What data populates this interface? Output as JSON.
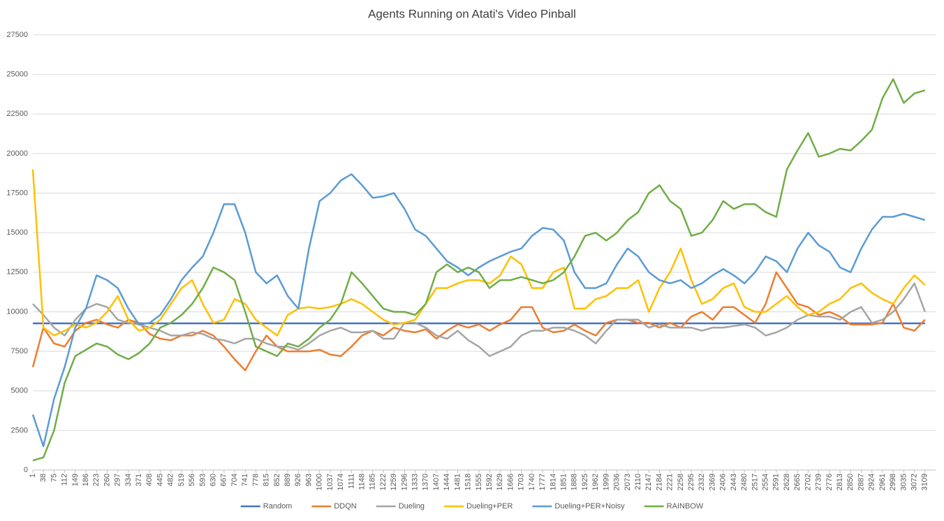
{
  "chart_data": {
    "type": "line",
    "title": "Agents Running on Atati's Video Pinball",
    "x": [
      1,
      38,
      75,
      112,
      149,
      186,
      223,
      260,
      297,
      334,
      371,
      408,
      445,
      482,
      519,
      556,
      593,
      630,
      667,
      704,
      741,
      778,
      815,
      852,
      889,
      926,
      963,
      1000,
      1037,
      1074,
      1111,
      1148,
      1185,
      1222,
      1259,
      1296,
      1333,
      1370,
      1407,
      1444,
      1481,
      1518,
      1555,
      1592,
      1629,
      1666,
      1703,
      1740,
      1777,
      1814,
      1851,
      1888,
      1925,
      1962,
      1999,
      2036,
      2073,
      2110,
      2147,
      2184,
      2221,
      2258,
      2295,
      2332,
      2369,
      2406,
      2443,
      2480,
      2517,
      2554,
      2591,
      2628,
      2665,
      2702,
      2739,
      2776,
      2813,
      2850,
      2887,
      2924,
      2961,
      2998,
      3035,
      3072,
      3109
    ],
    "xlim": [
      1,
      3146
    ],
    "ylim": [
      0,
      27500
    ],
    "yticks": [
      0,
      2500,
      5000,
      7500,
      10000,
      12500,
      15000,
      17500,
      20000,
      22500,
      25000,
      27500
    ],
    "grid": true,
    "legend": "bottom",
    "series": [
      {
        "name": "Random",
        "color": "#4472c4",
        "values": [
          9270,
          9270,
          9270,
          9270,
          9270,
          9270,
          9270,
          9270,
          9270,
          9270,
          9270,
          9270,
          9270,
          9270,
          9270,
          9270,
          9270,
          9270,
          9270,
          9270,
          9270,
          9270,
          9270,
          9270,
          9270,
          9270,
          9270,
          9270,
          9270,
          9270,
          9270,
          9270,
          9270,
          9270,
          9270,
          9270,
          9270,
          9270,
          9270,
          9270,
          9270,
          9270,
          9270,
          9270,
          9270,
          9270,
          9270,
          9270,
          9270,
          9270,
          9270,
          9270,
          9270,
          9270,
          9270,
          9270,
          9270,
          9270,
          9270,
          9270,
          9270,
          9270,
          9270,
          9270,
          9270,
          9270,
          9270,
          9270,
          9270,
          9270,
          9270,
          9270,
          9270,
          9270,
          9270,
          9270,
          9270,
          9270,
          9270,
          9270,
          9270,
          9270,
          9270,
          9270,
          9270
        ]
      },
      {
        "name": "DDQN",
        "color": "#ed7d31",
        "values": [
          6500,
          9000,
          8000,
          7800,
          8800,
          9300,
          9500,
          9200,
          9000,
          9500,
          9300,
          8600,
          8300,
          8200,
          8500,
          8500,
          8800,
          8500,
          7800,
          7000,
          6300,
          7500,
          8500,
          7800,
          7500,
          7500,
          7500,
          7600,
          7300,
          7200,
          7800,
          8500,
          8800,
          8500,
          9000,
          8800,
          8700,
          8900,
          8300,
          8800,
          9200,
          9000,
          9200,
          8800,
          9200,
          9500,
          10300,
          10300,
          9000,
          8700,
          8800,
          9200,
          8800,
          8500,
          9300,
          9500,
          9500,
          9300,
          9300,
          9000,
          9300,
          9000,
          9700,
          10000,
          9500,
          10300,
          10300,
          9800,
          9300,
          10500,
          12500,
          11500,
          10500,
          10300,
          9800,
          10000,
          9700,
          9200,
          9200,
          9200,
          9300,
          10500,
          9000,
          8800,
          9500
        ]
      },
      {
        "name": "Dueling",
        "color": "#a5a5a5",
        "values": [
          10500,
          9800,
          9000,
          8500,
          9500,
          10200,
          10500,
          10300,
          9500,
          9300,
          9200,
          9000,
          8800,
          8500,
          8500,
          8700,
          8600,
          8300,
          8200,
          8000,
          8300,
          8300,
          8000,
          7800,
          7800,
          7600,
          8000,
          8500,
          8800,
          9000,
          8700,
          8700,
          8800,
          8300,
          8300,
          9300,
          9300,
          9000,
          8500,
          8300,
          8800,
          8200,
          7800,
          7200,
          7500,
          7800,
          8500,
          8800,
          8800,
          9000,
          9000,
          8800,
          8500,
          8000,
          8800,
          9500,
          9500,
          9500,
          9000,
          9200,
          9000,
          9000,
          9000,
          8800,
          9000,
          9000,
          9100,
          9200,
          9000,
          8500,
          8700,
          9000,
          9500,
          9800,
          9700,
          9700,
          9500,
          10000,
          10300,
          9300,
          9500,
          10000,
          10800,
          11800,
          10000
        ]
      },
      {
        "name": "Dueling+PER",
        "color": "#ffc000",
        "values": [
          19000,
          9000,
          8500,
          8800,
          9200,
          9000,
          9300,
          10000,
          11000,
          9500,
          8800,
          9000,
          9500,
          10500,
          11500,
          12000,
          10500,
          9300,
          9500,
          10800,
          10500,
          9500,
          9000,
          8500,
          9800,
          10200,
          10300,
          10200,
          10300,
          10500,
          10800,
          10500,
          10000,
          9500,
          9200,
          9300,
          9500,
          10500,
          11500,
          11500,
          11800,
          12000,
          12000,
          11800,
          12300,
          13500,
          13000,
          11500,
          11500,
          12500,
          12800,
          10200,
          10200,
          10800,
          11000,
          11500,
          11500,
          12000,
          10000,
          11500,
          12500,
          14000,
          12000,
          10500,
          10800,
          11500,
          11800,
          10300,
          10000,
          10000,
          10500,
          11000,
          10300,
          9800,
          10000,
          10500,
          10800,
          11500,
          11800,
          11200,
          10800,
          10500,
          11500,
          12300,
          11700
        ]
      },
      {
        "name": "Dueling+PER+Noisy",
        "color": "#5b9bd5",
        "values": [
          3500,
          1500,
          4500,
          6500,
          9000,
          10200,
          12300,
          12000,
          11500,
          10200,
          9200,
          9300,
          9800,
          10800,
          12000,
          12800,
          13500,
          15000,
          16800,
          16800,
          15000,
          12500,
          11800,
          12300,
          11000,
          10200,
          14000,
          17000,
          17500,
          18300,
          18700,
          18000,
          17200,
          17300,
          17500,
          16500,
          15200,
          14800,
          14000,
          13200,
          12800,
          12300,
          12800,
          13200,
          13500,
          13800,
          14000,
          14800,
          15300,
          15200,
          14500,
          12500,
          11500,
          11500,
          11800,
          13000,
          14000,
          13500,
          12500,
          12000,
          11800,
          12000,
          11500,
          11800,
          12300,
          12700,
          12300,
          11800,
          12500,
          13500,
          13200,
          12500,
          14000,
          15000,
          14200,
          13800,
          12800,
          12500,
          14000,
          15200,
          16000,
          16000,
          16200,
          16000,
          15800
        ]
      },
      {
        "name": "RAINBOW",
        "color": "#70ad47",
        "values": [
          600,
          800,
          2500,
          5500,
          7200,
          7600,
          8000,
          7800,
          7300,
          7000,
          7400,
          8000,
          9000,
          9300,
          9800,
          10500,
          11500,
          12800,
          12500,
          12000,
          10000,
          7800,
          7500,
          7200,
          8000,
          7800,
          8300,
          9000,
          9500,
          10500,
          12500,
          11800,
          11000,
          10200,
          10000,
          10000,
          9800,
          10500,
          12500,
          13000,
          12500,
          12800,
          12500,
          11500,
          12000,
          12000,
          12200,
          12000,
          11800,
          12000,
          12500,
          13500,
          14800,
          15000,
          14500,
          15000,
          15800,
          16300,
          17500,
          18000,
          17000,
          16500,
          14800,
          15000,
          15800,
          17000,
          16500,
          16800,
          16800,
          16300,
          16000,
          19000,
          20200,
          21300,
          19800,
          20000,
          20300,
          20200,
          20800,
          21500,
          23500,
          24700,
          23200,
          23800,
          24000
        ]
      }
    ]
  }
}
